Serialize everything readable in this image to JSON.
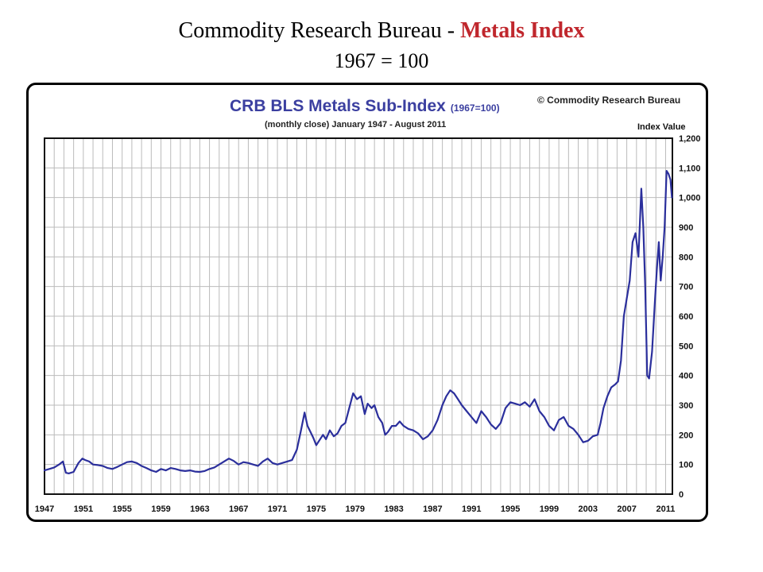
{
  "slide": {
    "title_prefix": "Commodity Research Bureau - ",
    "title_accent": "Metals Index",
    "subtitle": "1967 = 100"
  },
  "colors": {
    "accent": "#c0272d",
    "series": "#2b2f9c",
    "chart_title": "#3b3fa0",
    "grid": "#bbbbbb"
  },
  "chart_data": {
    "type": "line",
    "title": "CRB BLS Metals Sub-Index",
    "title_suffix": "(1967=100)",
    "subtitle": "(monthly close) January 1947 - August 2011",
    "copyright": "© Commodity Research Bureau",
    "ylabel": "Index Value",
    "xlabel": "",
    "ylim": [
      0,
      1200
    ],
    "xlim": [
      1947,
      2011.7
    ],
    "y_ticks": [
      0,
      100,
      200,
      300,
      400,
      500,
      600,
      700,
      800,
      900,
      1000,
      1100,
      1200
    ],
    "y_tick_labels": [
      "0",
      "100",
      "200",
      "300",
      "400",
      "500",
      "600",
      "700",
      "800",
      "900",
      "1,000",
      "1,100",
      "1,200"
    ],
    "x_ticks": [
      1947,
      1951,
      1955,
      1959,
      1963,
      1967,
      1971,
      1975,
      1979,
      1983,
      1987,
      1991,
      1995,
      1999,
      2003,
      2007,
      2011
    ],
    "y_axis_position": "right",
    "grid": true,
    "legend": "none",
    "series": [
      {
        "x": [
          1947.0,
          1947.5,
          1948.0,
          1948.5,
          1948.9,
          1949.2,
          1949.5,
          1950.0,
          1950.5,
          1950.9,
          1951.2,
          1951.6,
          1952.0,
          1952.5,
          1953.0,
          1953.5,
          1954.0,
          1954.5,
          1955.0,
          1955.5,
          1956.0,
          1956.5,
          1957.0,
          1957.5,
          1958.0,
          1958.5,
          1959.0,
          1959.5,
          1960.0,
          1960.5,
          1961.0,
          1961.5,
          1962.0,
          1962.5,
          1963.0,
          1963.5,
          1964.0,
          1964.5,
          1965.0,
          1965.5,
          1966.0,
          1966.5,
          1967.0,
          1967.5,
          1968.0,
          1968.5,
          1969.0,
          1969.5,
          1970.0,
          1970.5,
          1971.0,
          1971.5,
          1972.0,
          1972.5,
          1973.0,
          1973.4,
          1973.8,
          1974.1,
          1974.4,
          1974.7,
          1975.0,
          1975.3,
          1975.7,
          1976.0,
          1976.4,
          1976.8,
          1977.2,
          1977.6,
          1978.0,
          1978.4,
          1978.8,
          1979.2,
          1979.6,
          1980.0,
          1980.3,
          1980.7,
          1981.0,
          1981.4,
          1981.8,
          1982.1,
          1982.4,
          1982.8,
          1983.2,
          1983.6,
          1984.0,
          1984.5,
          1985.0,
          1985.5,
          1986.0,
          1986.5,
          1987.0,
          1987.5,
          1988.0,
          1988.4,
          1988.8,
          1989.2,
          1989.6,
          1990.0,
          1990.5,
          1991.0,
          1991.5,
          1992.0,
          1992.5,
          1993.0,
          1993.5,
          1994.0,
          1994.5,
          1995.0,
          1995.5,
          1996.0,
          1996.5,
          1997.0,
          1997.5,
          1998.0,
          1998.5,
          1999.0,
          1999.5,
          2000.0,
          2000.5,
          2001.0,
          2001.5,
          2002.0,
          2002.5,
          2003.0,
          2003.5,
          2004.0,
          2004.3,
          2004.6,
          2005.0,
          2005.4,
          2005.8,
          2006.1,
          2006.4,
          2006.7,
          2007.0,
          2007.3,
          2007.6,
          2007.9,
          2008.2,
          2008.5,
          2008.7,
          2008.9,
          2009.1,
          2009.3,
          2009.6,
          2009.9,
          2010.1,
          2010.3,
          2010.5,
          2010.7,
          2010.9,
          2011.1,
          2011.3,
          2011.5,
          2011.65
        ],
        "y": [
          80,
          85,
          90,
          100,
          110,
          72,
          70,
          75,
          105,
          120,
          115,
          110,
          100,
          98,
          95,
          88,
          85,
          92,
          100,
          108,
          110,
          105,
          95,
          88,
          80,
          75,
          85,
          80,
          88,
          85,
          80,
          78,
          80,
          76,
          75,
          78,
          85,
          90,
          100,
          110,
          120,
          112,
          100,
          108,
          105,
          100,
          95,
          110,
          120,
          105,
          100,
          105,
          110,
          115,
          150,
          210,
          275,
          230,
          210,
          190,
          165,
          180,
          200,
          185,
          215,
          195,
          205,
          230,
          240,
          290,
          340,
          320,
          330,
          270,
          305,
          290,
          300,
          260,
          240,
          200,
          210,
          230,
          230,
          245,
          230,
          220,
          215,
          205,
          185,
          195,
          215,
          250,
          300,
          330,
          350,
          340,
          320,
          300,
          280,
          260,
          240,
          280,
          260,
          235,
          220,
          240,
          290,
          310,
          305,
          300,
          310,
          295,
          320,
          280,
          260,
          230,
          215,
          250,
          260,
          230,
          220,
          200,
          175,
          180,
          195,
          200,
          240,
          290,
          330,
          360,
          370,
          380,
          450,
          600,
          660,
          720,
          850,
          880,
          800,
          1030,
          900,
          700,
          400,
          390,
          480,
          650,
          760,
          850,
          720,
          800,
          900,
          1090,
          1080,
          1060,
          1000
        ]
      }
    ]
  }
}
